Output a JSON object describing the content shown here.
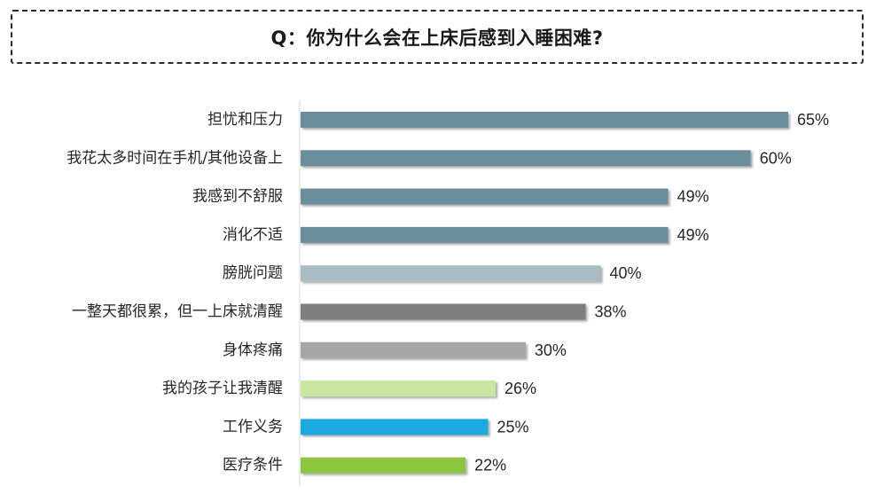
{
  "chart_data": {
    "type": "bar",
    "orientation": "horizontal",
    "title": "Q：你为什么会在上床后感到入睡困难?",
    "categories": [
      "担忧和压力",
      "我花太多时间在手机/其他设备上",
      "我感到不舒服",
      "消化不适",
      "膀胱问题",
      "一整天都很累，但一上床就清醒",
      "身体疼痛",
      "我的孩子让我清醒",
      "工作义务",
      "医疗条件"
    ],
    "values": [
      65,
      60,
      49,
      49,
      40,
      38,
      30,
      26,
      25,
      22
    ],
    "value_labels": [
      "65%",
      "60%",
      "49%",
      "49%",
      "40%",
      "38%",
      "30%",
      "26%",
      "25%",
      "22%"
    ],
    "bar_colors": [
      "#6b8e9c",
      "#6b8e9c",
      "#6b8e9c",
      "#6b8e9c",
      "#a9bcc6",
      "#7f7f7f",
      "#a6a6a6",
      "#c9e6a3",
      "#1aa8e0",
      "#8cc63f"
    ],
    "xlim": [
      0,
      72
    ],
    "grid": false,
    "legend": "none"
  }
}
